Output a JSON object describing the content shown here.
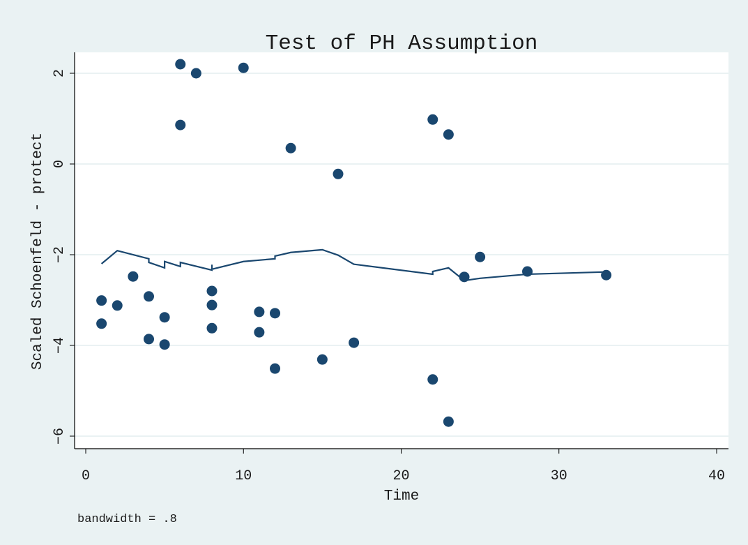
{
  "chart_data": {
    "type": "scatter",
    "title": "Test of PH Assumption",
    "xlabel": "Time",
    "ylabel": "Scaled Schoenfeld - protect",
    "note": "bandwidth = .8",
    "xlim": [
      0,
      40
    ],
    "ylim": [
      -6,
      2
    ],
    "xticks": [
      0,
      10,
      20,
      30,
      40
    ],
    "yticks": [
      -6,
      -4,
      -2,
      0,
      2
    ],
    "grid": true,
    "colors": {
      "marker": "#1a476f",
      "line": "#1a476f",
      "background": "#eaf2f3",
      "plot": "#ffffff",
      "grid": "#eaf2f3"
    },
    "points": [
      [
        1,
        -3.01
      ],
      [
        1,
        -3.52
      ],
      [
        2,
        -3.12
      ],
      [
        3,
        -2.48
      ],
      [
        4,
        -2.92
      ],
      [
        4,
        -3.86
      ],
      [
        5,
        -3.38
      ],
      [
        5,
        -3.98
      ],
      [
        6,
        2.2
      ],
      [
        6,
        0.86
      ],
      [
        7,
        2.0
      ],
      [
        8,
        -2.8
      ],
      [
        8,
        -3.11
      ],
      [
        8,
        -3.62
      ],
      [
        10,
        2.12
      ],
      [
        11,
        -3.26
      ],
      [
        11,
        -3.71
      ],
      [
        12,
        -3.29
      ],
      [
        12,
        -4.51
      ],
      [
        13,
        0.35
      ],
      [
        15,
        -4.31
      ],
      [
        16,
        -0.22
      ],
      [
        17,
        -3.94
      ],
      [
        22,
        0.98
      ],
      [
        22,
        -4.75
      ],
      [
        23,
        0.65
      ],
      [
        23,
        -5.68
      ],
      [
        24,
        -2.49
      ],
      [
        25,
        -2.05
      ],
      [
        28,
        -2.37
      ],
      [
        33,
        -2.45
      ]
    ],
    "smooth_line": [
      [
        1,
        -2.2
      ],
      [
        2,
        -1.91
      ],
      [
        4,
        -2.09
      ],
      [
        4,
        -2.17
      ],
      [
        5,
        -2.29
      ],
      [
        5,
        -2.15
      ],
      [
        6,
        -2.26
      ],
      [
        6,
        -2.17
      ],
      [
        8,
        -2.34
      ],
      [
        8,
        -2.22
      ],
      [
        8,
        -2.32
      ],
      [
        10,
        -2.15
      ],
      [
        11,
        -2.12
      ],
      [
        12,
        -2.09
      ],
      [
        12,
        -2.03
      ],
      [
        13,
        -1.95
      ],
      [
        15,
        -1.89
      ],
      [
        16,
        -2.01
      ],
      [
        17,
        -2.21
      ],
      [
        22,
        -2.43
      ],
      [
        22,
        -2.37
      ],
      [
        23,
        -2.29
      ],
      [
        24,
        -2.57
      ],
      [
        25,
        -2.52
      ],
      [
        28,
        -2.43
      ],
      [
        33,
        -2.38
      ]
    ]
  }
}
